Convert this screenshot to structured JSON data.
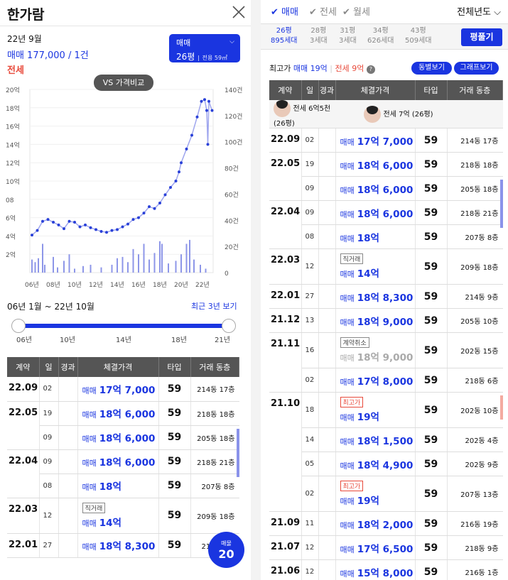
{
  "header": {
    "title": "한가람"
  },
  "summary": {
    "date": "22년 9월",
    "price": "매매 177,000 / 1건",
    "rent_label": "전세",
    "type_label": "매매",
    "size_label": "26평",
    "area_label": "전용 59㎡"
  },
  "chart": {
    "vs_label": "VS 가격비교",
    "range_label": "06년 1월 ~ 22년 10월",
    "recent_label": "최근 3년 보기",
    "badge_label": "매물",
    "badge_count": "20"
  },
  "chart_data": {
    "type": "line",
    "x_ticks": [
      "06년",
      "08년",
      "10년",
      "12년",
      "14년",
      "16년",
      "18년",
      "20년",
      "22년"
    ],
    "y_ticks": [
      "2억",
      "4억",
      "6억",
      "08",
      "10억",
      "12억",
      "14억",
      "16억",
      "18억",
      "20억"
    ],
    "y2_ticks": [
      "0",
      "20건",
      "40건",
      "60건",
      "80건",
      "100건",
      "120건",
      "140건"
    ],
    "ylim": [
      0,
      20
    ],
    "y2lim": [
      0,
      140
    ],
    "series": [
      {
        "values": [
          [
            2006.0,
            4.1
          ],
          [
            2006.5,
            4.6
          ],
          [
            2007.0,
            5.6
          ],
          [
            2007.5,
            5.8
          ],
          [
            2008.0,
            5.5
          ],
          [
            2008.5,
            5.2
          ],
          [
            2009.0,
            4.8
          ],
          [
            2009.5,
            5.6
          ],
          [
            2010.0,
            5.5
          ],
          [
            2010.5,
            5.0
          ],
          [
            2011.0,
            5.2
          ],
          [
            2011.5,
            4.9
          ],
          [
            2012.0,
            4.7
          ],
          [
            2012.5,
            4.5
          ],
          [
            2013.0,
            4.4
          ],
          [
            2013.5,
            4.6
          ],
          [
            2014.0,
            4.7
          ],
          [
            2014.5,
            5.0
          ],
          [
            2015.0,
            5.3
          ],
          [
            2015.5,
            5.8
          ],
          [
            2016.0,
            6.0
          ],
          [
            2016.5,
            6.5
          ],
          [
            2017.0,
            7.2
          ],
          [
            2017.5,
            7.0
          ],
          [
            2018.0,
            7.6
          ],
          [
            2018.5,
            8.5
          ],
          [
            2019.0,
            9.3
          ],
          [
            2019.5,
            10.0
          ],
          [
            2019.8,
            11.0
          ],
          [
            2020.0,
            12.0
          ],
          [
            2020.5,
            13.5
          ],
          [
            2021.0,
            15.0
          ],
          [
            2021.5,
            17.0
          ],
          [
            2021.9,
            18.7
          ],
          [
            2022.2,
            18.9
          ],
          [
            2022.4,
            17.7
          ],
          [
            2022.5,
            14.0
          ],
          [
            2022.6,
            18.7
          ],
          [
            2022.9,
            17.7
          ]
        ]
      }
    ],
    "bars": [
      [
        2006.0,
        10
      ],
      [
        2006.3,
        8
      ],
      [
        2006.6,
        11
      ],
      [
        2007.0,
        22
      ],
      [
        2007.2,
        6
      ],
      [
        2008.0,
        12
      ],
      [
        2008.4,
        4
      ],
      [
        2009.0,
        9
      ],
      [
        2009.5,
        14
      ],
      [
        2010.0,
        3
      ],
      [
        2010.8,
        5
      ],
      [
        2011.5,
        6
      ],
      [
        2012.5,
        4
      ],
      [
        2013.5,
        6
      ],
      [
        2014.0,
        11
      ],
      [
        2014.5,
        12
      ],
      [
        2015.0,
        8
      ],
      [
        2015.5,
        18
      ],
      [
        2016.0,
        14
      ],
      [
        2016.5,
        22
      ],
      [
        2017.0,
        10
      ],
      [
        2017.5,
        15
      ],
      [
        2018.0,
        24
      ],
      [
        2018.2,
        22
      ],
      [
        2018.8,
        7
      ],
      [
        2019.5,
        9
      ],
      [
        2020.0,
        14
      ],
      [
        2020.5,
        22
      ],
      [
        2020.8,
        25
      ],
      [
        2021.2,
        10
      ],
      [
        2021.8,
        6
      ],
      [
        2022.3,
        3
      ]
    ]
  },
  "range": {
    "ticks": [
      "06년",
      "10년",
      "14년",
      "18년",
      "21년"
    ]
  },
  "table": {
    "headers": [
      "계약",
      "일",
      "경과",
      "체결가격",
      "타입",
      "거래 동층"
    ],
    "rows": [
      {
        "date": "22.09",
        "day": "02",
        "tag": "",
        "kind": "매매",
        "price": "17억 7,000",
        "type": "59",
        "floor": "214동 17층"
      },
      {
        "date": "22.05",
        "day": "19",
        "tag": "",
        "kind": "매매",
        "price": "18억 6,000",
        "type": "59",
        "floor": "218동 18층"
      },
      {
        "date": "",
        "day": "09",
        "tag": "",
        "kind": "매매",
        "price": "18억 6,000",
        "type": "59",
        "floor": "205동 18층"
      },
      {
        "date": "22.04",
        "day": "09",
        "tag": "",
        "kind": "매매",
        "price": "18억 6,000",
        "type": "59",
        "floor": "218동 21층"
      },
      {
        "date": "",
        "day": "08",
        "tag": "",
        "kind": "매매",
        "price": "18억",
        "type": "59",
        "floor": "207동 8층"
      },
      {
        "date": "22.03",
        "day": "12",
        "tag": "직거래",
        "kind": "매매",
        "price": "14억",
        "type": "59",
        "floor": "209동 18층"
      },
      {
        "date": "22.01",
        "day": "27",
        "tag": "",
        "kind": "매매",
        "price": "18억 8,300",
        "type": "59",
        "floor": "214동 9층"
      }
    ]
  },
  "right": {
    "tabs": [
      "매매",
      "전세",
      "월세"
    ],
    "year_filter": "전체년도",
    "sizes": [
      {
        "top": "26평",
        "bot": "895세대"
      },
      {
        "top": "28평",
        "bot": "3세대"
      },
      {
        "top": "31평",
        "bot": "3세대"
      },
      {
        "top": "34평",
        "bot": "626세대"
      },
      {
        "top": "43평",
        "bot": "509세대"
      }
    ],
    "compare_label": "평풀기",
    "high_label": "최고가",
    "high_sale": "매매 19억",
    "high_rent": "전세 9억",
    "btn_same": "동별보기",
    "btn_graph": "그래프보기",
    "jeonse1": "전세 6억5천 (26평)",
    "jeonse2": "전세 7억 (26평)",
    "rows": [
      {
        "date": "22.09",
        "day": "02",
        "tag": "",
        "kind": "매매",
        "price": "17억 7,000",
        "type": "59",
        "floor": "214동 17층"
      },
      {
        "date": "22.05",
        "day": "19",
        "tag": "",
        "kind": "매매",
        "price": "18억 6,000",
        "type": "59",
        "floor": "218동 18층"
      },
      {
        "date": "",
        "day": "09",
        "tag": "",
        "kind": "매매",
        "price": "18억 6,000",
        "type": "59",
        "floor": "205동 18층"
      },
      {
        "date": "22.04",
        "day": "09",
        "tag": "",
        "kind": "매매",
        "price": "18억 6,000",
        "type": "59",
        "floor": "218동 21층"
      },
      {
        "date": "",
        "day": "08",
        "tag": "",
        "kind": "매매",
        "price": "18억",
        "type": "59",
        "floor": "207동 8층"
      },
      {
        "date": "22.03",
        "day": "12",
        "tag": "직거래",
        "kind": "매매",
        "price": "14억",
        "type": "59",
        "floor": "209동 18층"
      },
      {
        "date": "22.01",
        "day": "27",
        "tag": "",
        "kind": "매매",
        "price": "18억 8,300",
        "type": "59",
        "floor": "214동 9층"
      },
      {
        "date": "21.12",
        "day": "13",
        "tag": "",
        "kind": "매매",
        "price": "18억 9,000",
        "type": "59",
        "floor": "205동 10층"
      },
      {
        "date": "21.11",
        "day": "16",
        "tag": "계약취소",
        "kind": "매매",
        "price": "18억 9,000",
        "type": "59",
        "floor": "202동 15층"
      },
      {
        "date": "",
        "day": "02",
        "tag": "",
        "kind": "매매",
        "price": "17억 8,000",
        "type": "59",
        "floor": "218동 6층"
      },
      {
        "date": "21.10",
        "day": "18",
        "tag": "최고가",
        "kind": "매매",
        "price": "19억",
        "type": "59",
        "floor": "202동 10층"
      },
      {
        "date": "",
        "day": "14",
        "tag": "",
        "kind": "매매",
        "price": "18억 1,500",
        "type": "59",
        "floor": "202동 4층"
      },
      {
        "date": "",
        "day": "05",
        "tag": "",
        "kind": "매매",
        "price": "18억 4,900",
        "type": "59",
        "floor": "202동 9층"
      },
      {
        "date": "",
        "day": "02",
        "tag": "최고가",
        "kind": "매매",
        "price": "19억",
        "type": "59",
        "floor": "207동 13층"
      },
      {
        "date": "21.09",
        "day": "11",
        "tag": "",
        "kind": "매매",
        "price": "18억 2,000",
        "type": "59",
        "floor": "216동 19층"
      },
      {
        "date": "21.07",
        "day": "12",
        "tag": "",
        "kind": "매매",
        "price": "17억 6,500",
        "type": "59",
        "floor": "218동 9층"
      },
      {
        "date": "21.06",
        "day": "12",
        "tag": "",
        "kind": "매매",
        "price": "15억 8,000",
        "type": "59",
        "floor": "216동 1층"
      }
    ]
  }
}
